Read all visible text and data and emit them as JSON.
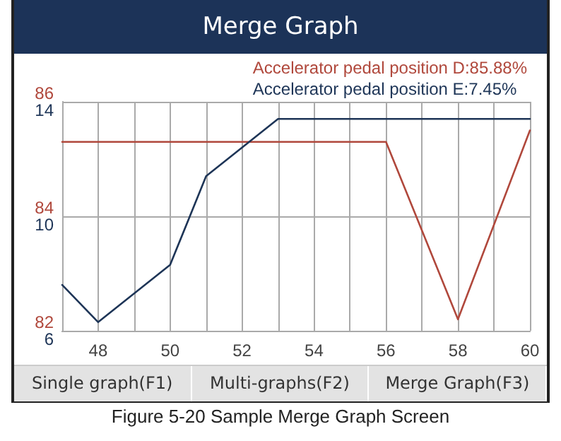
{
  "chart_data": {
    "type": "line",
    "title": "Merge Graph",
    "series": [
      {
        "name": "Accelerator pedal position D:85.88%",
        "color": "#b0483c",
        "axis": "y2",
        "x": [
          47,
          56,
          58,
          60
        ],
        "values": [
          85.3,
          85.3,
          82.2,
          85.5
        ]
      },
      {
        "name": "Accelerator pedal position E:7.45%",
        "color": "#1e3557",
        "x": [
          47,
          48,
          50,
          51,
          52,
          53,
          60
        ],
        "values": [
          7.6,
          6.3,
          8.3,
          11.4,
          12.4,
          13.4,
          13.4
        ]
      }
    ],
    "xlim": [
      47,
      60
    ],
    "xticks": [
      {
        "value": 47,
        "label": null
      },
      48,
      {
        "value": 49,
        "label": null
      },
      50,
      {
        "value": 51,
        "label": null
      },
      52,
      {
        "value": 53,
        "label": null
      },
      54,
      {
        "value": 55,
        "label": null
      },
      56,
      {
        "value": 57,
        "label": null
      },
      58,
      {
        "value": 59,
        "label": null
      },
      60
    ],
    "ylim": [
      6,
      14
    ],
    "yticks": [
      6,
      10,
      14
    ],
    "y2lim": [
      82,
      86
    ],
    "y2ticks": [
      82,
      84,
      86
    ],
    "grid": true,
    "legend": "top right",
    "marker": "none",
    "line_style": "solid",
    "annotations": [
      "Single graph(F1)",
      "Multi-graphs(F2)",
      "Merge Graph(F3)",
      "Figure 5-20 Sample Merge Graph Screen"
    ]
  }
}
